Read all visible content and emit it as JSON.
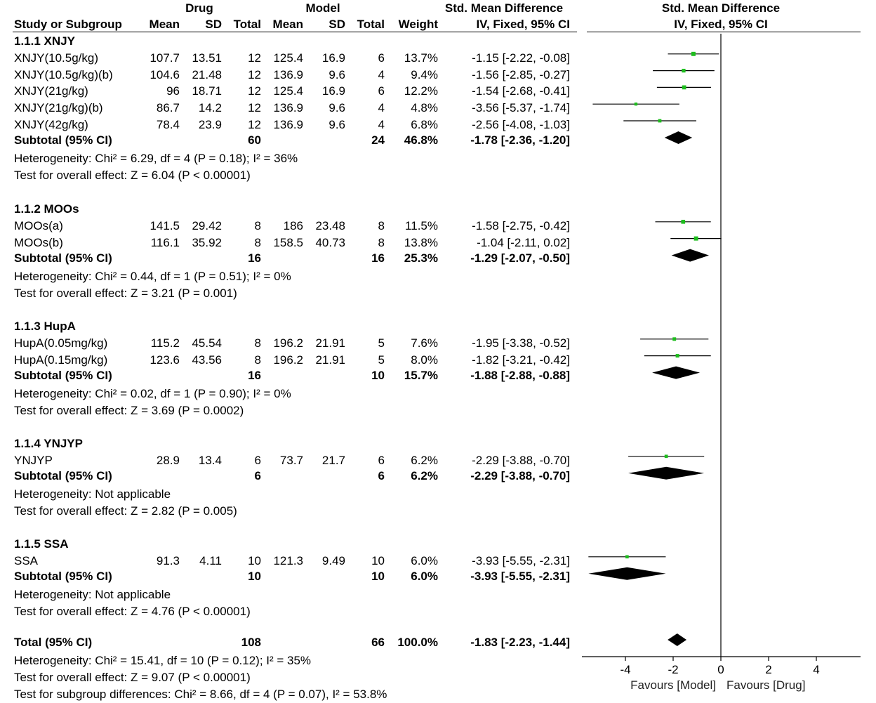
{
  "chart_data": {
    "type": "forest",
    "title": "Std. Mean Difference",
    "subtitle": "IV, Fixed, 95% CI",
    "xlim": [
      -6,
      6
    ],
    "ticks": [
      -4,
      -2,
      0,
      2,
      4
    ],
    "tick_labels": [
      "-4",
      "-2",
      "0",
      "2",
      "4"
    ],
    "favours_left": "Favours [Model]",
    "favours_right": "Favours [Drug]",
    "headers": {
      "drug_group": "Drug",
      "model_group": "Model",
      "smd_group": "Std. Mean Difference",
      "study": "Study or Subgroup",
      "mean": "Mean",
      "sd": "SD",
      "total": "Total",
      "mean2": "Mean",
      "sd2": "SD",
      "total2": "Total",
      "weight": "Weight",
      "ci": "IV, Fixed, 95% CI",
      "plot_ci": "IV, Fixed, 95% CI"
    },
    "groups": [
      {
        "title": "1.1.1 XNJY",
        "studies": [
          {
            "name": "XNJY(10.5g/kg)",
            "mean1": "107.7",
            "sd1": "13.51",
            "n1": "12",
            "mean2": "125.4",
            "sd2": "16.9",
            "n2": "6",
            "weight": "13.7%",
            "ci": "-1.15 [-2.22, -0.08]",
            "est": -1.15,
            "lo": -2.22,
            "hi": -0.08,
            "w": 13.7
          },
          {
            "name": "XNJY(10.5g/kg)(b)",
            "mean1": "104.6",
            "sd1": "21.48",
            "n1": "12",
            "mean2": "136.9",
            "sd2": "9.6",
            "n2": "4",
            "weight": "9.4%",
            "ci": "-1.56 [-2.85, -0.27]",
            "est": -1.56,
            "lo": -2.85,
            "hi": -0.27,
            "w": 9.4
          },
          {
            "name": "XNJY(21g/kg)",
            "mean1": "96",
            "sd1": "18.71",
            "n1": "12",
            "mean2": "125.4",
            "sd2": "16.9",
            "n2": "6",
            "weight": "12.2%",
            "ci": "-1.54 [-2.68, -0.41]",
            "est": -1.54,
            "lo": -2.68,
            "hi": -0.41,
            "w": 12.2
          },
          {
            "name": "XNJY(21g/kg)(b)",
            "mean1": "86.7",
            "sd1": "14.2",
            "n1": "12",
            "mean2": "136.9",
            "sd2": "9.6",
            "n2": "4",
            "weight": "4.8%",
            "ci": "-3.56 [-5.37, -1.74]",
            "est": -3.56,
            "lo": -5.37,
            "hi": -1.74,
            "w": 4.8
          },
          {
            "name": "XNJY(42g/kg)",
            "mean1": "78.4",
            "sd1": "23.9",
            "n1": "12",
            "mean2": "136.9",
            "sd2": "9.6",
            "n2": "4",
            "weight": "6.8%",
            "ci": "-2.56 [-4.08, -1.03]",
            "est": -2.56,
            "lo": -4.08,
            "hi": -1.03,
            "w": 6.8
          }
        ],
        "subtotal": {
          "label": "Subtotal (95% CI)",
          "n1": "60",
          "n2": "24",
          "weight": "46.8%",
          "ci": "-1.78 [-2.36, -1.20]",
          "est": -1.78,
          "lo": -2.36,
          "hi": -1.2
        },
        "heterogeneity": "Heterogeneity: Chi² = 6.29, df = 4 (P = 0.18); I² = 36%",
        "effect": "Test for overall effect: Z = 6.04 (P < 0.00001)"
      },
      {
        "title": "1.1.2 MOOs",
        "studies": [
          {
            "name": "MOOs(a)",
            "mean1": "141.5",
            "sd1": "29.42",
            "n1": "8",
            "mean2": "186",
            "sd2": "23.48",
            "n2": "8",
            "weight": "11.5%",
            "ci": "-1.58 [-2.75, -0.42]",
            "est": -1.58,
            "lo": -2.75,
            "hi": -0.42,
            "w": 11.5
          },
          {
            "name": "MOOs(b)",
            "mean1": "116.1",
            "sd1": "35.92",
            "n1": "8",
            "mean2": "158.5",
            "sd2": "40.73",
            "n2": "8",
            "weight": "13.8%",
            "ci": "-1.04 [-2.11, 0.02]",
            "est": -1.04,
            "lo": -2.11,
            "hi": 0.02,
            "w": 13.8
          }
        ],
        "subtotal": {
          "label": "Subtotal (95% CI)",
          "n1": "16",
          "n2": "16",
          "weight": "25.3%",
          "ci": "-1.29 [-2.07, -0.50]",
          "est": -1.29,
          "lo": -2.07,
          "hi": -0.5
        },
        "heterogeneity": "Heterogeneity: Chi² = 0.44, df = 1 (P = 0.51); I² = 0%",
        "effect": "Test for overall effect: Z = 3.21 (P = 0.001)"
      },
      {
        "title": "1.1.3 HupA",
        "studies": [
          {
            "name": "HupA(0.05mg/kg)",
            "mean1": "115.2",
            "sd1": "45.54",
            "n1": "8",
            "mean2": "196.2",
            "sd2": "21.91",
            "n2": "5",
            "weight": "7.6%",
            "ci": "-1.95 [-3.38, -0.52]",
            "est": -1.95,
            "lo": -3.38,
            "hi": -0.52,
            "w": 7.6
          },
          {
            "name": "HupA(0.15mg/kg)",
            "mean1": "123.6",
            "sd1": "43.56",
            "n1": "8",
            "mean2": "196.2",
            "sd2": "21.91",
            "n2": "5",
            "weight": "8.0%",
            "ci": "-1.82 [-3.21, -0.42]",
            "est": -1.82,
            "lo": -3.21,
            "hi": -0.42,
            "w": 8.0
          }
        ],
        "subtotal": {
          "label": "Subtotal (95% CI)",
          "n1": "16",
          "n2": "10",
          "weight": "15.7%",
          "ci": "-1.88 [-2.88, -0.88]",
          "est": -1.88,
          "lo": -2.88,
          "hi": -0.88
        },
        "heterogeneity": "Heterogeneity: Chi² = 0.02, df = 1 (P = 0.90); I² = 0%",
        "effect": "Test for overall effect: Z = 3.69 (P = 0.0002)"
      },
      {
        "title": "1.1.4 YNJYP",
        "studies": [
          {
            "name": "YNJYP",
            "mean1": "28.9",
            "sd1": "13.4",
            "n1": "6",
            "mean2": "73.7",
            "sd2": "21.7",
            "n2": "6",
            "weight": "6.2%",
            "ci": "-2.29 [-3.88, -0.70]",
            "est": -2.29,
            "lo": -3.88,
            "hi": -0.7,
            "w": 6.2
          }
        ],
        "subtotal": {
          "label": "Subtotal (95% CI)",
          "n1": "6",
          "n2": "6",
          "weight": "6.2%",
          "ci": "-2.29 [-3.88, -0.70]",
          "est": -2.29,
          "lo": -3.88,
          "hi": -0.7
        },
        "heterogeneity": "Heterogeneity: Not applicable",
        "effect": "Test for overall effect: Z = 2.82 (P = 0.005)"
      },
      {
        "title": "1.1.5 SSA",
        "studies": [
          {
            "name": "SSA",
            "mean1": "91.3",
            "sd1": "4.11",
            "n1": "10",
            "mean2": "121.3",
            "sd2": "9.49",
            "n2": "10",
            "weight": "6.0%",
            "ci": "-3.93 [-5.55, -2.31]",
            "est": -3.93,
            "lo": -5.55,
            "hi": -2.31,
            "w": 6.0
          }
        ],
        "subtotal": {
          "label": "Subtotal (95% CI)",
          "n1": "10",
          "n2": "10",
          "weight": "6.0%",
          "ci": "-3.93 [-5.55, -2.31]",
          "est": -3.93,
          "lo": -5.55,
          "hi": -2.31
        },
        "heterogeneity": "Heterogeneity: Not applicable",
        "effect": "Test for overall effect: Z = 4.76 (P < 0.00001)"
      }
    ],
    "total": {
      "label": "Total (95% CI)",
      "n1": "108",
      "n2": "66",
      "weight": "100.0%",
      "ci": "-1.83 [-2.23, -1.44]",
      "est": -1.83,
      "lo": -2.23,
      "hi": -1.44
    },
    "footer": [
      "Heterogeneity: Chi² = 15.41, df = 10 (P = 0.12); I² = 35%",
      "Test for overall effect: Z = 9.07 (P < 0.00001)",
      "Test for subgroup differences: Chi² = 8.66, df = 4 (P = 0.07), I² = 53.8%"
    ],
    "colors": {
      "square": "#1ebe1e",
      "diamond": "#000000",
      "line": "#000000"
    }
  }
}
